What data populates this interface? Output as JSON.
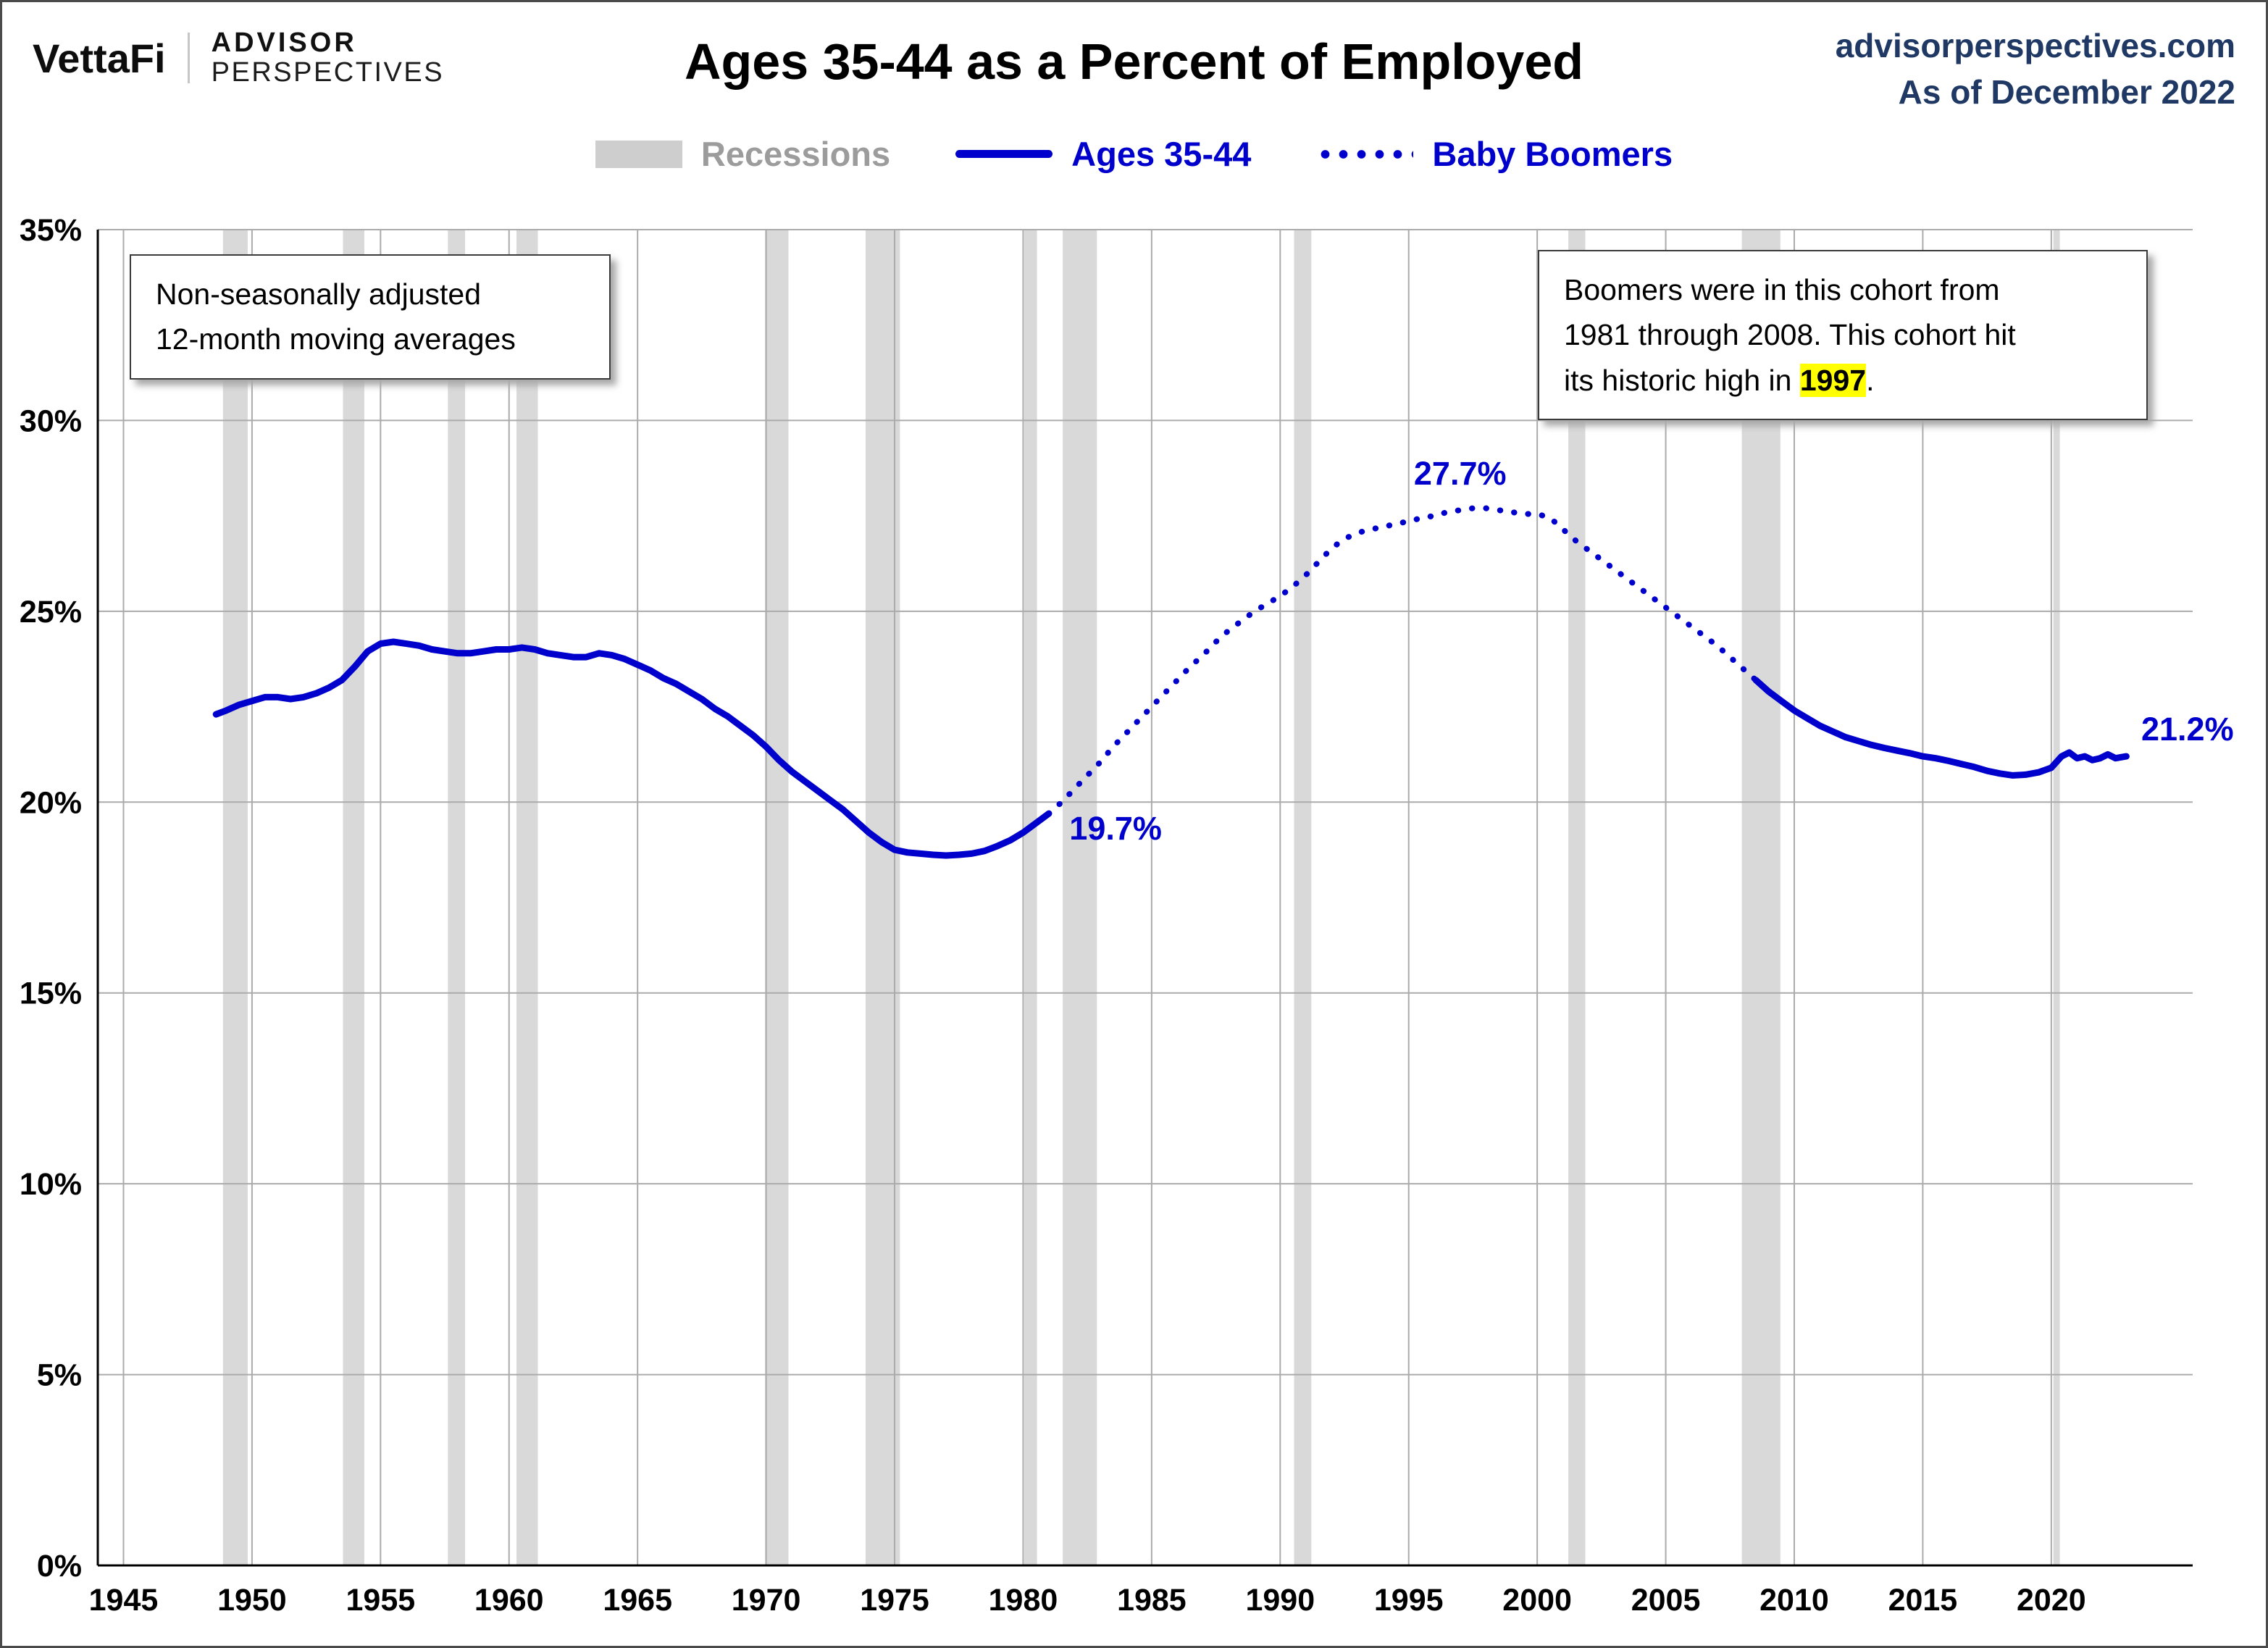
{
  "header": {
    "brand": {
      "vettafi": "VettaFi",
      "advisor": "ADVISOR",
      "perspectives": "PERSPECTIVES"
    },
    "title": "Ages 35-44 as a Percent of Employed",
    "site": "advisorperspectives.com",
    "as_of": "As of December 2022"
  },
  "legend": {
    "items": [
      {
        "label": "Recessions",
        "swatch": "band"
      },
      {
        "label": "Ages 35-44",
        "swatch": "solid-line"
      },
      {
        "label": "Baby Boomers",
        "swatch": "dotted-line"
      }
    ]
  },
  "notes": {
    "left_box": {
      "line1": "Non-seasonally adjusted",
      "line2": "12-month moving averages"
    },
    "right_box": {
      "line1": "Boomers were in this cohort from",
      "line2": "1981 through 2008. This cohort hit",
      "line3_pre": "its historic high in ",
      "line3_highlight": "1997",
      "line3_post": "."
    }
  },
  "colors": {
    "accent_blue": "#0000CC",
    "navy": "#1F3864",
    "recession_band": "#D9D9D9",
    "gridline": "#ABABAB",
    "legend_gray": "#9C9C9C",
    "highlight_yellow": "#FFFF00",
    "axis_black": "#000000"
  },
  "chart_data": {
    "type": "line",
    "title": "Ages 35-44 as a Percent of Employed",
    "xlabel": "",
    "ylabel": "",
    "x_range": [
      1944,
      2025.5
    ],
    "y_range": [
      0,
      35
    ],
    "x_ticks": [
      1945,
      1950,
      1955,
      1960,
      1965,
      1970,
      1975,
      1980,
      1985,
      1990,
      1995,
      2000,
      2005,
      2010,
      2015,
      2020
    ],
    "y_tick_values": [
      0,
      5,
      10,
      15,
      20,
      25,
      30,
      35
    ],
    "y_tick_labels": [
      "0%",
      "5%",
      "10%",
      "15%",
      "20%",
      "25%",
      "30%",
      "35%"
    ],
    "grid": true,
    "legend_position": "top",
    "recessions": [
      [
        1948.87,
        1949.83
      ],
      [
        1953.54,
        1954.37
      ],
      [
        1957.62,
        1958.29
      ],
      [
        1960.29,
        1961.12
      ],
      [
        1969.96,
        1970.87
      ],
      [
        1973.87,
        1975.21
      ],
      [
        1980.04,
        1980.54
      ],
      [
        1981.54,
        1982.87
      ],
      [
        1990.54,
        1991.21
      ],
      [
        2001.21,
        2001.87
      ],
      [
        2007.96,
        2009.46
      ],
      [
        2020.08,
        2020.33
      ]
    ],
    "series": [
      {
        "id": "ages-35-44-early",
        "name": "Ages 35-44",
        "style": "solid",
        "points": [
          [
            1948.6,
            22.3
          ],
          [
            1949,
            22.4
          ],
          [
            1949.5,
            22.55
          ],
          [
            1950,
            22.65
          ],
          [
            1950.5,
            22.75
          ],
          [
            1951,
            22.75
          ],
          [
            1951.5,
            22.7
          ],
          [
            1952,
            22.75
          ],
          [
            1952.5,
            22.85
          ],
          [
            1953,
            23.0
          ],
          [
            1953.5,
            23.2
          ],
          [
            1954,
            23.55
          ],
          [
            1954.5,
            23.95
          ],
          [
            1955,
            24.15
          ],
          [
            1955.5,
            24.2
          ],
          [
            1956,
            24.15
          ],
          [
            1956.5,
            24.1
          ],
          [
            1957,
            24.0
          ],
          [
            1957.5,
            23.95
          ],
          [
            1958,
            23.9
          ],
          [
            1958.5,
            23.9
          ],
          [
            1959,
            23.95
          ],
          [
            1959.5,
            24.0
          ],
          [
            1960,
            24.0
          ],
          [
            1960.5,
            24.05
          ],
          [
            1961,
            24.0
          ],
          [
            1961.5,
            23.9
          ],
          [
            1962,
            23.85
          ],
          [
            1962.5,
            23.8
          ],
          [
            1963,
            23.8
          ],
          [
            1963.5,
            23.9
          ],
          [
            1964,
            23.85
          ],
          [
            1964.5,
            23.75
          ],
          [
            1965,
            23.6
          ],
          [
            1965.5,
            23.45
          ],
          [
            1966,
            23.25
          ],
          [
            1966.5,
            23.1
          ],
          [
            1967,
            22.9
          ],
          [
            1967.5,
            22.7
          ],
          [
            1968,
            22.45
          ],
          [
            1968.5,
            22.25
          ],
          [
            1969,
            22.0
          ],
          [
            1969.5,
            21.75
          ],
          [
            1970,
            21.45
          ],
          [
            1970.5,
            21.1
          ],
          [
            1971,
            20.8
          ],
          [
            1971.5,
            20.55
          ],
          [
            1972,
            20.3
          ],
          [
            1972.5,
            20.05
          ],
          [
            1973,
            19.8
          ],
          [
            1973.5,
            19.5
          ],
          [
            1974,
            19.2
          ],
          [
            1974.5,
            18.95
          ],
          [
            1975,
            18.75
          ],
          [
            1975.5,
            18.68
          ],
          [
            1976,
            18.65
          ],
          [
            1976.5,
            18.62
          ],
          [
            1977,
            18.6
          ],
          [
            1977.5,
            18.62
          ],
          [
            1978,
            18.65
          ],
          [
            1978.5,
            18.72
          ],
          [
            1979,
            18.85
          ],
          [
            1979.5,
            19.0
          ],
          [
            1980,
            19.2
          ],
          [
            1980.5,
            19.45
          ],
          [
            1981,
            19.7
          ]
        ]
      },
      {
        "id": "baby-boomers",
        "name": "Baby Boomers",
        "style": "dotted",
        "points": [
          [
            1981,
            19.7
          ],
          [
            1981.5,
            20.0
          ],
          [
            1982,
            20.35
          ],
          [
            1982.5,
            20.7
          ],
          [
            1983,
            21.05
          ],
          [
            1983.5,
            21.45
          ],
          [
            1984,
            21.8
          ],
          [
            1984.5,
            22.15
          ],
          [
            1985,
            22.5
          ],
          [
            1985.5,
            22.85
          ],
          [
            1986,
            23.2
          ],
          [
            1986.5,
            23.55
          ],
          [
            1987,
            23.85
          ],
          [
            1987.5,
            24.2
          ],
          [
            1988,
            24.5
          ],
          [
            1988.5,
            24.75
          ],
          [
            1989,
            25.0
          ],
          [
            1989.5,
            25.2
          ],
          [
            1990,
            25.4
          ],
          [
            1990.5,
            25.65
          ],
          [
            1991,
            25.95
          ],
          [
            1991.5,
            26.3
          ],
          [
            1992,
            26.65
          ],
          [
            1992.5,
            26.9
          ],
          [
            1993,
            27.05
          ],
          [
            1993.5,
            27.15
          ],
          [
            1994,
            27.2
          ],
          [
            1994.5,
            27.3
          ],
          [
            1995,
            27.35
          ],
          [
            1995.5,
            27.45
          ],
          [
            1996,
            27.5
          ],
          [
            1996.5,
            27.6
          ],
          [
            1997,
            27.65
          ],
          [
            1997.5,
            27.7
          ],
          [
            1998,
            27.7
          ],
          [
            1998.5,
            27.65
          ],
          [
            1999,
            27.6
          ],
          [
            1999.5,
            27.55
          ],
          [
            2000,
            27.55
          ],
          [
            2000.5,
            27.45
          ],
          [
            2001,
            27.15
          ],
          [
            2001.5,
            26.85
          ],
          [
            2002,
            26.6
          ],
          [
            2002.5,
            26.35
          ],
          [
            2003,
            26.1
          ],
          [
            2003.5,
            25.85
          ],
          [
            2004,
            25.6
          ],
          [
            2004.5,
            25.35
          ],
          [
            2005,
            25.1
          ],
          [
            2005.5,
            24.85
          ],
          [
            2006,
            24.6
          ],
          [
            2006.5,
            24.35
          ],
          [
            2007,
            24.1
          ],
          [
            2007.5,
            23.8
          ],
          [
            2008,
            23.5
          ],
          [
            2008.5,
            23.2
          ]
        ]
      },
      {
        "id": "ages-35-44-late",
        "name": "Ages 35-44",
        "style": "solid",
        "points": [
          [
            2008.5,
            23.2
          ],
          [
            2009,
            22.9
          ],
          [
            2009.5,
            22.65
          ],
          [
            2010,
            22.4
          ],
          [
            2010.5,
            22.2
          ],
          [
            2011,
            22.0
          ],
          [
            2011.5,
            21.85
          ],
          [
            2012,
            21.7
          ],
          [
            2012.5,
            21.6
          ],
          [
            2013,
            21.5
          ],
          [
            2013.5,
            21.42
          ],
          [
            2014,
            21.35
          ],
          [
            2014.5,
            21.28
          ],
          [
            2015,
            21.2
          ],
          [
            2015.5,
            21.15
          ],
          [
            2016,
            21.08
          ],
          [
            2016.5,
            21.0
          ],
          [
            2017,
            20.92
          ],
          [
            2017.5,
            20.82
          ],
          [
            2018,
            20.75
          ],
          [
            2018.5,
            20.7
          ],
          [
            2019,
            20.72
          ],
          [
            2019.5,
            20.78
          ],
          [
            2020,
            20.9
          ],
          [
            2020.4,
            21.2
          ],
          [
            2020.7,
            21.3
          ],
          [
            2021,
            21.15
          ],
          [
            2021.3,
            21.2
          ],
          [
            2021.6,
            21.1
          ],
          [
            2021.9,
            21.15
          ],
          [
            2022.2,
            21.25
          ],
          [
            2022.5,
            21.15
          ],
          [
            2022.92,
            21.2
          ]
        ]
      }
    ],
    "annotations": [
      {
        "x": 1981.8,
        "y": 19.3,
        "text": "19.7%",
        "anchor": "start"
      },
      {
        "x": 1997.0,
        "y": 28.6,
        "text": "27.7%",
        "anchor": "middle"
      },
      {
        "x": 2023.5,
        "y": 21.9,
        "text": "21.2%",
        "anchor": "start"
      }
    ]
  }
}
